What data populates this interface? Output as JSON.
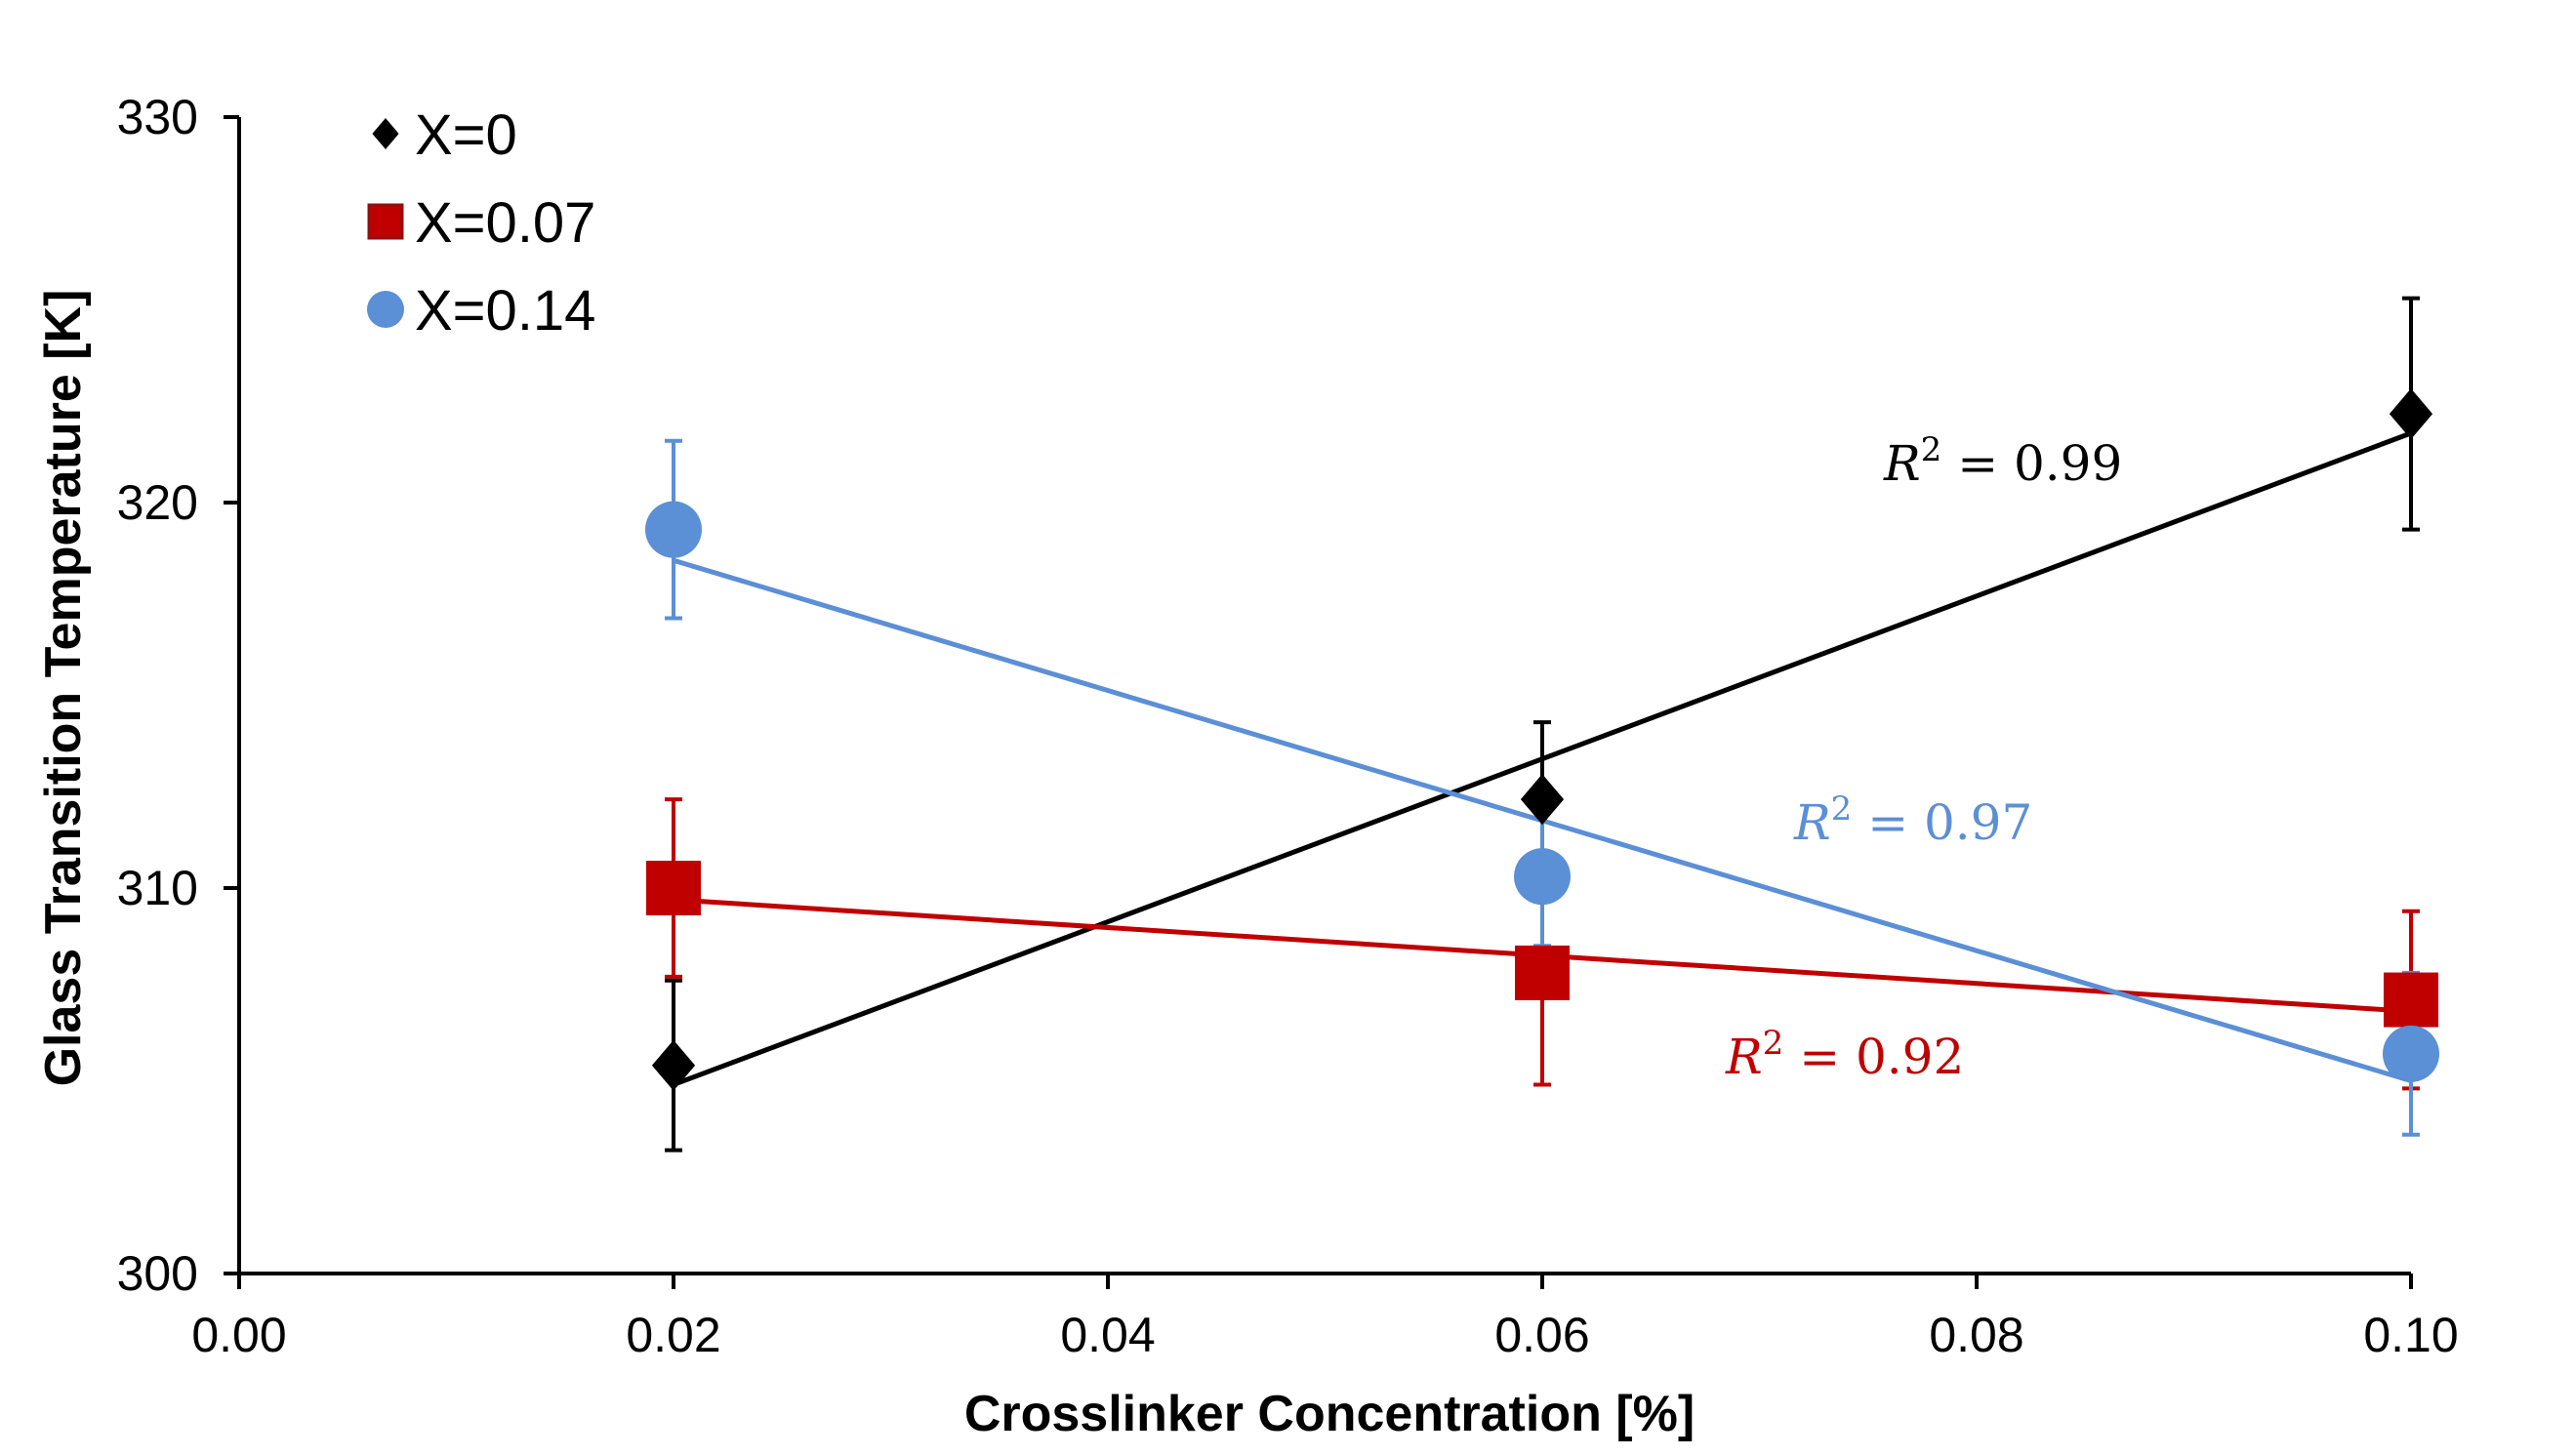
{
  "chart_data": {
    "type": "scatter",
    "xlabel": "Crosslinker Concentration [%]",
    "ylabel": "Glass Transition Temperature [K]",
    "xlim": [
      0,
      0.1
    ],
    "ylim": [
      300,
      330
    ],
    "x_ticks": [
      "0.00",
      "0.02",
      "0.04",
      "0.06",
      "0.08",
      "0.10"
    ],
    "y_ticks": [
      "300",
      "310",
      "320",
      "330"
    ],
    "grid": false,
    "legend_position": "top-left",
    "series": [
      {
        "name": "X=0",
        "marker": "diamond",
        "color": "#000000",
        "x": [
          0.02,
          0.06,
          0.1
        ],
        "y": [
          305.4,
          312.3,
          322.3
        ],
        "error": [
          2.2,
          2.0,
          3.0
        ],
        "trendline": {
          "y_start": 304.9,
          "y_end": 321.8
        },
        "r2_label": {
          "lhs": "R",
          "sup": "2",
          "rhs": " = 0.99"
        }
      },
      {
        "name": "X=0.07",
        "marker": "square",
        "color": "#c00000",
        "x": [
          0.02,
          0.06,
          0.1
        ],
        "y": [
          310.0,
          307.8,
          307.1
        ],
        "error": [
          2.3,
          2.9,
          2.3
        ],
        "trendline": {
          "y_start": 309.7,
          "y_end": 306.8
        },
        "r2_label": {
          "lhs": "R",
          "sup": "2",
          "rhs": " = 0.92"
        }
      },
      {
        "name": "X=0.14",
        "marker": "circle",
        "color": "#5b8fd6",
        "x": [
          0.02,
          0.06,
          0.1
        ],
        "y": [
          319.3,
          310.3,
          305.7
        ],
        "error": [
          2.3,
          1.8,
          2.1
        ],
        "trendline": {
          "y_start": 318.5,
          "y_end": 305.0
        },
        "r2_label": {
          "lhs": "R",
          "sup": "2",
          "rhs": " = 0.97"
        }
      }
    ]
  }
}
